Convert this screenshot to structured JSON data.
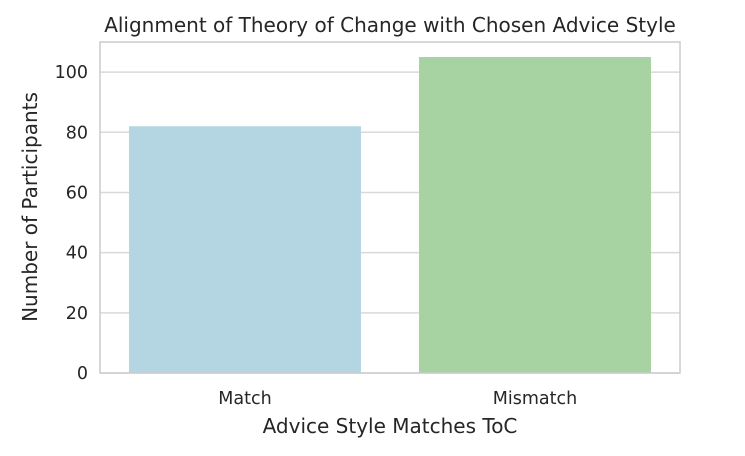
{
  "chart_data": {
    "type": "bar",
    "title": "Alignment of Theory of Change with Chosen Advice Style",
    "xlabel": "Advice Style Matches ToC",
    "ylabel": "Number of Participants",
    "categories": [
      "Match",
      "Mismatch"
    ],
    "values": [
      82,
      105
    ],
    "colors": [
      "#b3d6e2",
      "#a6d3a1"
    ],
    "ylim": [
      0,
      110
    ],
    "yticks": [
      0,
      20,
      40,
      60,
      80,
      100
    ],
    "grid": true,
    "legend": "none"
  },
  "style": {
    "grid_color": "#d9d9d9",
    "spine_color": "#cccccc",
    "background": "#ffffff"
  }
}
